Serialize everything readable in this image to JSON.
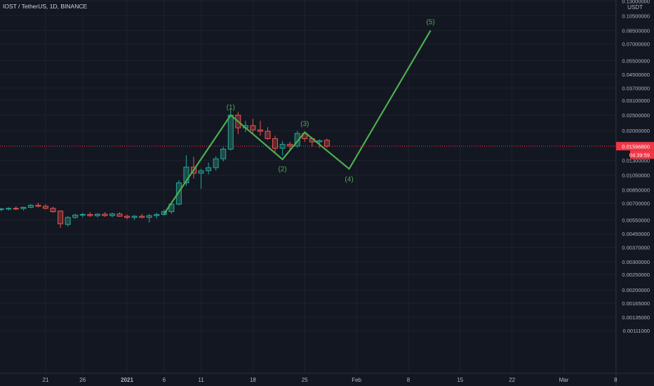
{
  "header": {
    "symbol_line": "IOST / TetherUS, 1D, BINANCE"
  },
  "price_axis": {
    "unit_label": "USDT",
    "ticks": [
      "0.13000000",
      "0.10500000",
      "0.08500000",
      "0.07000000",
      "0.05500000",
      "0.04500000",
      "0.03700000",
      "0.03100000",
      "0.02500000",
      "0.02000000",
      "0.01300000",
      "0.01050000",
      "0.00850000",
      "0.00700000",
      "0.00550000",
      "0.00450000",
      "0.00370000",
      "0.00300000",
      "0.00250000",
      "0.00200000",
      "0.00165000",
      "0.00135000",
      "0.00111000"
    ],
    "current_price": "0.01596800",
    "countdown": "04:39:59",
    "current_price_color": "#f23645"
  },
  "time_axis": {
    "ticks": [
      "21",
      "26",
      "2021",
      "6",
      "11",
      "18",
      "25",
      "Feb",
      "8",
      "15",
      "22",
      "Mar",
      "8"
    ]
  },
  "colors": {
    "background": "#131722",
    "grid": "#1e222d",
    "up": "#26a69a",
    "down": "#ef5350",
    "wave": "#4caf50",
    "axis_text": "#b2b5be"
  },
  "chart_data": {
    "type": "candlestick",
    "scale": "log",
    "grid": true,
    "y_ticks": [
      0.13,
      0.105,
      0.085,
      0.07,
      0.055,
      0.045,
      0.037,
      0.031,
      0.025,
      0.02,
      0.013,
      0.0105,
      0.0085,
      0.007,
      0.0055,
      0.0045,
      0.0037,
      0.003,
      0.0025,
      0.002,
      0.00165,
      0.00135,
      0.00111
    ],
    "x_ticks": [
      {
        "label": "21",
        "date": "2020-12-21"
      },
      {
        "label": "26",
        "date": "2020-12-26"
      },
      {
        "label": "2021",
        "date": "2021-01-01"
      },
      {
        "label": "6",
        "date": "2021-01-06"
      },
      {
        "label": "11",
        "date": "2021-01-11"
      },
      {
        "label": "18",
        "date": "2021-01-18"
      },
      {
        "label": "25",
        "date": "2021-01-25"
      },
      {
        "label": "Feb",
        "date": "2021-02-01"
      },
      {
        "label": "8",
        "date": "2021-02-08"
      },
      {
        "label": "15",
        "date": "2021-02-15"
      },
      {
        "label": "22",
        "date": "2021-02-22"
      },
      {
        "label": "Mar",
        "date": "2021-03-01"
      },
      {
        "label": "8",
        "date": "2021-03-08"
      }
    ],
    "candles": [
      {
        "date": "2020-12-15",
        "open": 0.0064,
        "high": 0.00655,
        "low": 0.00625,
        "close": 0.00645
      },
      {
        "date": "2020-12-16",
        "open": 0.00645,
        "high": 0.0066,
        "low": 0.0063,
        "close": 0.0065
      },
      {
        "date": "2020-12-17",
        "open": 0.0065,
        "high": 0.0067,
        "low": 0.00635,
        "close": 0.00648
      },
      {
        "date": "2020-12-18",
        "open": 0.00648,
        "high": 0.00665,
        "low": 0.0063,
        "close": 0.0066
      },
      {
        "date": "2020-12-19",
        "open": 0.0066,
        "high": 0.0069,
        "low": 0.0065,
        "close": 0.0068
      },
      {
        "date": "2020-12-20",
        "open": 0.0068,
        "high": 0.00705,
        "low": 0.0066,
        "close": 0.0067
      },
      {
        "date": "2020-12-21",
        "open": 0.0067,
        "high": 0.0069,
        "low": 0.0064,
        "close": 0.0065
      },
      {
        "date": "2020-12-22",
        "open": 0.0065,
        "high": 0.00665,
        "low": 0.0061,
        "close": 0.0062
      },
      {
        "date": "2020-12-23",
        "open": 0.00625,
        "high": 0.0063,
        "low": 0.0049,
        "close": 0.0052
      },
      {
        "date": "2020-12-24",
        "open": 0.00515,
        "high": 0.0058,
        "low": 0.005,
        "close": 0.0057
      },
      {
        "date": "2020-12-25",
        "open": 0.0057,
        "high": 0.006,
        "low": 0.0056,
        "close": 0.0059
      },
      {
        "date": "2020-12-26",
        "open": 0.0059,
        "high": 0.0061,
        "low": 0.0057,
        "close": 0.00595
      },
      {
        "date": "2020-12-27",
        "open": 0.00595,
        "high": 0.00615,
        "low": 0.00575,
        "close": 0.00585
      },
      {
        "date": "2020-12-28",
        "open": 0.00585,
        "high": 0.00605,
        "low": 0.0057,
        "close": 0.00598
      },
      {
        "date": "2020-12-29",
        "open": 0.00598,
        "high": 0.00615,
        "low": 0.00575,
        "close": 0.00585
      },
      {
        "date": "2020-12-30",
        "open": 0.00585,
        "high": 0.0061,
        "low": 0.0057,
        "close": 0.006
      },
      {
        "date": "2020-12-31",
        "open": 0.006,
        "high": 0.00615,
        "low": 0.00575,
        "close": 0.0058
      },
      {
        "date": "2021-01-01",
        "open": 0.0058,
        "high": 0.00595,
        "low": 0.00555,
        "close": 0.0057
      },
      {
        "date": "2021-01-02",
        "open": 0.0057,
        "high": 0.0059,
        "low": 0.0055,
        "close": 0.0058
      },
      {
        "date": "2021-01-03",
        "open": 0.0058,
        "high": 0.006,
        "low": 0.00565,
        "close": 0.0057
      },
      {
        "date": "2021-01-04",
        "open": 0.0057,
        "high": 0.006,
        "low": 0.0053,
        "close": 0.00585
      },
      {
        "date": "2021-01-05",
        "open": 0.00585,
        "high": 0.0061,
        "low": 0.0056,
        "close": 0.00595
      },
      {
        "date": "2021-01-06",
        "open": 0.00595,
        "high": 0.0064,
        "low": 0.00585,
        "close": 0.0062
      },
      {
        "date": "2021-01-07",
        "open": 0.0062,
        "high": 0.007,
        "low": 0.006,
        "close": 0.0069
      },
      {
        "date": "2021-01-08",
        "open": 0.0069,
        "high": 0.0098,
        "low": 0.0068,
        "close": 0.0094
      },
      {
        "date": "2021-01-09",
        "open": 0.0094,
        "high": 0.014,
        "low": 0.009,
        "close": 0.0118
      },
      {
        "date": "2021-01-10",
        "open": 0.0118,
        "high": 0.0137,
        "low": 0.01,
        "close": 0.0108
      },
      {
        "date": "2021-01-11",
        "open": 0.0108,
        "high": 0.0115,
        "low": 0.0086,
        "close": 0.0112
      },
      {
        "date": "2021-01-12",
        "open": 0.0112,
        "high": 0.0126,
        "low": 0.0106,
        "close": 0.0117
      },
      {
        "date": "2021-01-13",
        "open": 0.0117,
        "high": 0.0138,
        "low": 0.0112,
        "close": 0.0133
      },
      {
        "date": "2021-01-14",
        "open": 0.0133,
        "high": 0.0158,
        "low": 0.0128,
        "close": 0.0153
      },
      {
        "date": "2021-01-15",
        "open": 0.0153,
        "high": 0.0275,
        "low": 0.015,
        "close": 0.025
      },
      {
        "date": "2021-01-16",
        "open": 0.025,
        "high": 0.0262,
        "low": 0.019,
        "close": 0.0208
      },
      {
        "date": "2021-01-17",
        "open": 0.0208,
        "high": 0.023,
        "low": 0.0195,
        "close": 0.0215
      },
      {
        "date": "2021-01-18",
        "open": 0.0215,
        "high": 0.0237,
        "low": 0.019,
        "close": 0.0202
      },
      {
        "date": "2021-01-19",
        "open": 0.0202,
        "high": 0.023,
        "low": 0.0186,
        "close": 0.0198
      },
      {
        "date": "2021-01-20",
        "open": 0.0198,
        "high": 0.021,
        "low": 0.0175,
        "close": 0.0178
      },
      {
        "date": "2021-01-21",
        "open": 0.0178,
        "high": 0.0186,
        "low": 0.0145,
        "close": 0.0155
      },
      {
        "date": "2021-01-22",
        "open": 0.0155,
        "high": 0.0172,
        "low": 0.014,
        "close": 0.0164
      },
      {
        "date": "2021-01-23",
        "open": 0.0164,
        "high": 0.017,
        "low": 0.0152,
        "close": 0.016
      },
      {
        "date": "2021-01-24",
        "open": 0.016,
        "high": 0.0199,
        "low": 0.0156,
        "close": 0.0192
      },
      {
        "date": "2021-01-25",
        "open": 0.0192,
        "high": 0.0198,
        "low": 0.017,
        "close": 0.0178
      },
      {
        "date": "2021-01-26",
        "open": 0.0178,
        "high": 0.0182,
        "low": 0.0158,
        "close": 0.017
      },
      {
        "date": "2021-01-27",
        "open": 0.017,
        "high": 0.0176,
        "low": 0.0156,
        "close": 0.0173
      },
      {
        "date": "2021-01-28",
        "open": 0.0174,
        "high": 0.0178,
        "low": 0.0156,
        "close": 0.01597
      }
    ],
    "elliott_wave": {
      "labels": [
        "(1)",
        "(2)",
        "(3)",
        "(4)",
        "(5)"
      ],
      "points": [
        {
          "label": "",
          "date": "2021-01-06",
          "price": 0.006
        },
        {
          "label": "(1)",
          "date": "2021-01-15",
          "price": 0.025
        },
        {
          "label": "(2)",
          "date": "2021-01-22",
          "price": 0.0132
        },
        {
          "label": "(3)",
          "date": "2021-01-25",
          "price": 0.0195
        },
        {
          "label": "(4)",
          "date": "2021-01-31",
          "price": 0.0115
        },
        {
          "label": "(5)",
          "date": "2021-02-11",
          "price": 0.085
        }
      ]
    }
  }
}
